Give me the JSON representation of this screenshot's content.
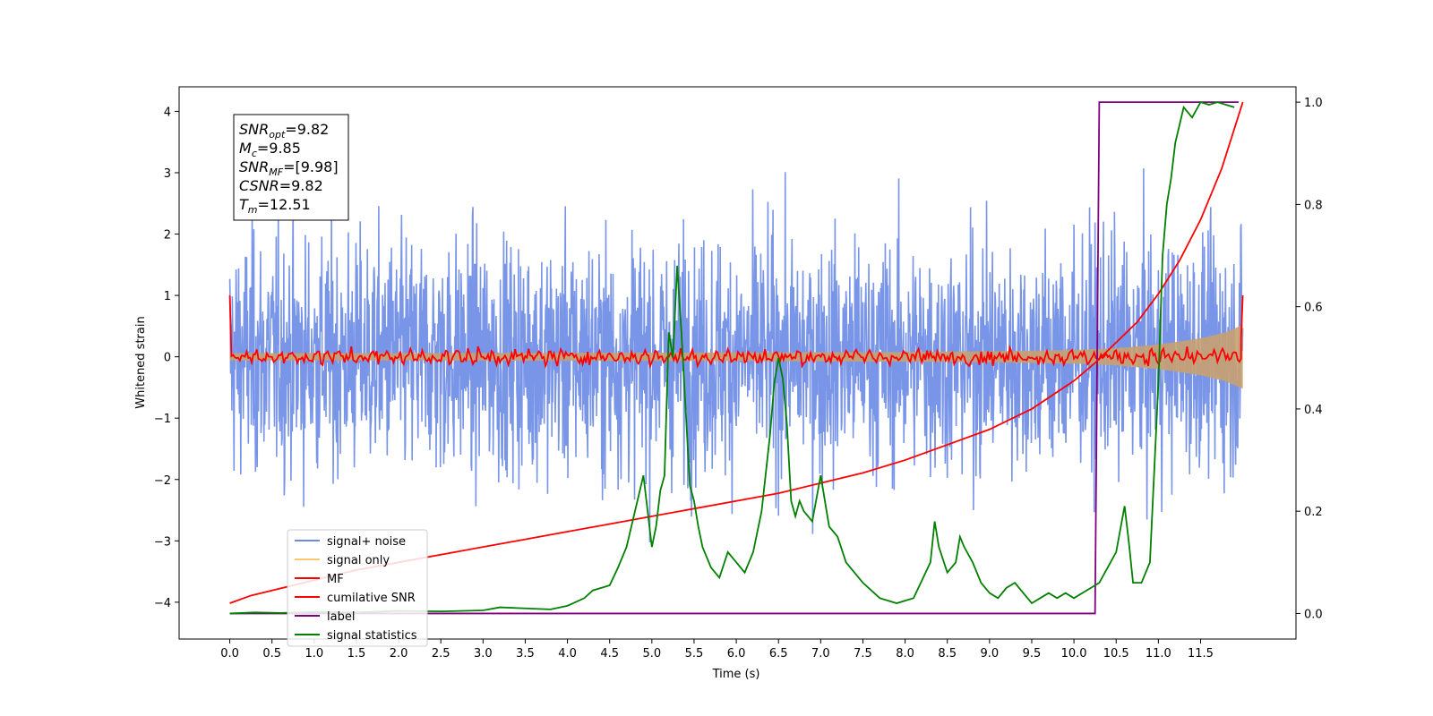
{
  "chart_data": {
    "type": "line",
    "xlabel": "Time (s)",
    "ylabel": "Whitened strain",
    "xlim": [
      -0.6,
      12.63
    ],
    "ylim": [
      -4.6,
      4.4
    ],
    "ylim_right": [
      -0.05,
      1.03
    ],
    "x_ticks": [
      "0.0",
      "0.5",
      "1.0",
      "1.5",
      "2.0",
      "2.5",
      "3.0",
      "3.5",
      "4.0",
      "4.5",
      "5.0",
      "5.5",
      "6.0",
      "6.5",
      "7.0",
      "7.5",
      "8.0",
      "8.5",
      "9.0",
      "9.5",
      "10.0",
      "10.5",
      "11.0",
      "11.5"
    ],
    "y_ticks": [
      "4",
      "3",
      "2",
      "1",
      "0",
      "−1",
      "−2",
      "−3",
      "−4"
    ],
    "y_ticks_right": [
      "1.0",
      "0.8",
      "0.6",
      "0.4",
      "0.2",
      "0.0"
    ],
    "grid": false,
    "legend_position": "lower-left",
    "annotations": [
      {
        "sym": "SNR",
        "sub": "opt",
        "text": "=9.82"
      },
      {
        "sym": "M",
        "sub": "c",
        "text": "=9.85"
      },
      {
        "sym": "SNR",
        "sub": "MF",
        "text": "=[9.98]"
      },
      {
        "sym": "CSNR",
        "sub": "",
        "text": "=9.82"
      },
      {
        "sym": "T",
        "sub": "m",
        "text": "=12.51"
      }
    ],
    "series": [
      {
        "name": "signal+ noise",
        "axis": "left",
        "color": "#6a8ae6",
        "description_points": {
          "x_start": 0.0,
          "x_end": 12.0,
          "approx_range": [
            -3.5,
            4.0
          ]
        }
      },
      {
        "name": "signal only",
        "axis": "left",
        "color": "#ffc870",
        "envelope": {
          "x": [
            0.0,
            2.0,
            4.0,
            6.0,
            8.0,
            9.0,
            10.0,
            10.5,
            11.0,
            11.5,
            11.8,
            12.0
          ],
          "amplitude": [
            0.06,
            0.06,
            0.065,
            0.07,
            0.08,
            0.09,
            0.11,
            0.14,
            0.2,
            0.3,
            0.4,
            0.52
          ]
        }
      },
      {
        "name": "MF",
        "axis": "left",
        "color": "#ff0000",
        "description_points": {
          "x_start": 0.0,
          "x_end": 12.0,
          "approx_range": [
            -0.15,
            0.3
          ],
          "start_value": 1.0,
          "end_value": 1.0
        }
      },
      {
        "name": "cumilative SNR",
        "axis": "right",
        "color": "#ff0000",
        "x": [
          0.0,
          0.25,
          0.5,
          1.0,
          1.5,
          2.0,
          2.5,
          3.0,
          3.5,
          4.0,
          4.5,
          5.0,
          5.5,
          6.0,
          6.5,
          7.0,
          7.5,
          8.0,
          8.5,
          9.0,
          9.5,
          10.0,
          10.25,
          10.5,
          10.75,
          11.0,
          11.25,
          11.5,
          11.75,
          12.0
        ],
        "values": [
          0.02,
          0.035,
          0.045,
          0.065,
          0.085,
          0.1,
          0.115,
          0.13,
          0.145,
          0.16,
          0.175,
          0.19,
          0.205,
          0.22,
          0.235,
          0.255,
          0.275,
          0.3,
          0.33,
          0.36,
          0.4,
          0.455,
          0.49,
          0.53,
          0.57,
          0.625,
          0.69,
          0.77,
          0.87,
          1.0
        ]
      },
      {
        "name": "label",
        "axis": "right",
        "color": "#800080",
        "x": [
          0.0,
          10.25,
          10.3,
          11.95
        ],
        "values": [
          0.0,
          0.0,
          1.0,
          1.0
        ]
      },
      {
        "name": "signal statistics",
        "axis": "right",
        "color": "#008000",
        "x": [
          0.0,
          0.3,
          0.6,
          1.0,
          1.5,
          2.0,
          2.5,
          3.0,
          3.2,
          3.5,
          3.8,
          4.0,
          4.2,
          4.3,
          4.4,
          4.5,
          4.6,
          4.7,
          4.8,
          4.9,
          5.0,
          5.05,
          5.1,
          5.15,
          5.2,
          5.25,
          5.3,
          5.35,
          5.4,
          5.45,
          5.5,
          5.55,
          5.6,
          5.7,
          5.8,
          5.9,
          6.0,
          6.1,
          6.2,
          6.3,
          6.4,
          6.45,
          6.5,
          6.55,
          6.6,
          6.65,
          6.7,
          6.75,
          6.8,
          6.9,
          7.0,
          7.1,
          7.2,
          7.3,
          7.5,
          7.7,
          7.9,
          8.1,
          8.3,
          8.35,
          8.4,
          8.5,
          8.6,
          8.65,
          8.7,
          8.8,
          8.9,
          9.0,
          9.1,
          9.2,
          9.3,
          9.4,
          9.5,
          9.6,
          9.7,
          9.8,
          9.9,
          10.0,
          10.2,
          10.3,
          10.4,
          10.5,
          10.6,
          10.65,
          10.7,
          10.8,
          10.9,
          11.0,
          11.05,
          11.1,
          11.15,
          11.2,
          11.3,
          11.4,
          11.5,
          11.6,
          11.7,
          11.8,
          11.9
        ],
        "values": [
          0.0,
          0.002,
          0.001,
          0.003,
          0.002,
          0.005,
          0.004,
          0.006,
          0.012,
          0.01,
          0.008,
          0.015,
          0.03,
          0.045,
          0.05,
          0.055,
          0.09,
          0.13,
          0.2,
          0.27,
          0.13,
          0.17,
          0.24,
          0.27,
          0.55,
          0.5,
          0.68,
          0.55,
          0.4,
          0.25,
          0.22,
          0.17,
          0.13,
          0.09,
          0.07,
          0.12,
          0.1,
          0.08,
          0.12,
          0.2,
          0.35,
          0.45,
          0.5,
          0.46,
          0.37,
          0.22,
          0.19,
          0.22,
          0.2,
          0.18,
          0.27,
          0.17,
          0.15,
          0.1,
          0.06,
          0.03,
          0.02,
          0.03,
          0.1,
          0.18,
          0.13,
          0.08,
          0.1,
          0.15,
          0.13,
          0.1,
          0.06,
          0.04,
          0.03,
          0.05,
          0.06,
          0.04,
          0.02,
          0.03,
          0.04,
          0.03,
          0.04,
          0.03,
          0.05,
          0.06,
          0.09,
          0.12,
          0.21,
          0.14,
          0.06,
          0.06,
          0.1,
          0.45,
          0.7,
          0.8,
          0.85,
          0.92,
          0.99,
          0.97,
          1.0,
          0.995,
          1.0,
          0.995,
          0.99
        ]
      }
    ]
  }
}
